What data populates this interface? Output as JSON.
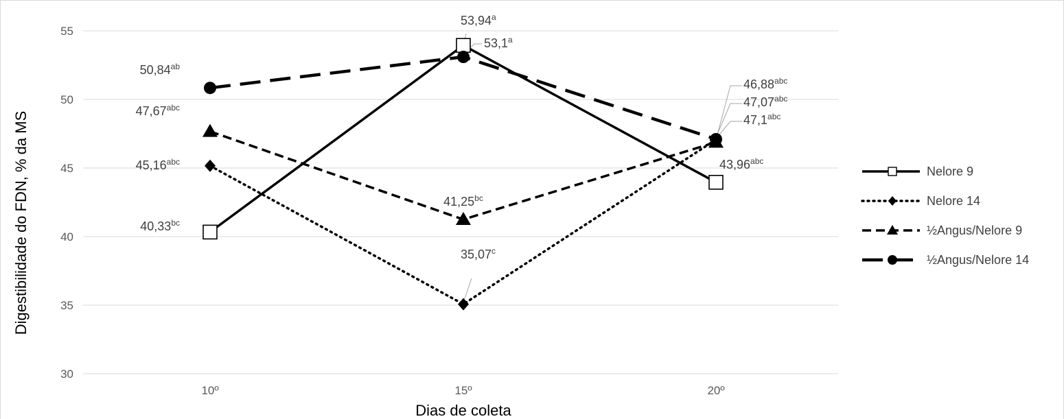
{
  "chart_data": {
    "type": "line",
    "title": "",
    "xlabel": "Dias de coleta",
    "ylabel": "Digestibilidade do FDN, % da MS",
    "categories": [
      "10º",
      "15º",
      "20º"
    ],
    "ylim": [
      30,
      55
    ],
    "yticks": [
      30,
      35,
      40,
      45,
      50,
      55
    ],
    "grid": "horizontal",
    "legend_position": "right",
    "series": [
      {
        "name": "Nelore 9",
        "values": [
          40.33,
          53.94,
          43.96
        ],
        "labels": [
          [
            "40,33",
            "bc"
          ],
          [
            "53,94",
            "a"
          ],
          [
            "43,96",
            "abc"
          ]
        ],
        "line_style": "solid",
        "marker": "open-square",
        "color": "#000000"
      },
      {
        "name": "Nelore 14",
        "values": [
          45.16,
          35.07,
          47.07
        ],
        "labels": [
          [
            "45,16",
            "abc"
          ],
          [
            "35,07",
            "c"
          ],
          [
            "47,07",
            "abc"
          ]
        ],
        "line_style": "dotted",
        "marker": "diamond",
        "color": "#000000"
      },
      {
        "name": "½Angus/Nelore 9",
        "values": [
          47.67,
          41.25,
          46.88
        ],
        "labels": [
          [
            "47,67",
            "abc"
          ],
          [
            "41,25",
            "bc"
          ],
          [
            "46,88",
            "abc"
          ]
        ],
        "line_style": "dashed",
        "marker": "triangle",
        "color": "#000000"
      },
      {
        "name": "½Angus/Nelore 14",
        "values": [
          50.84,
          53.1,
          47.1
        ],
        "labels": [
          [
            "50,84",
            "ab"
          ],
          [
            "53,1",
            "a"
          ],
          [
            "47,1",
            "abc"
          ]
        ],
        "line_style": "long-dash",
        "marker": "circle",
        "color": "#000000"
      }
    ]
  }
}
